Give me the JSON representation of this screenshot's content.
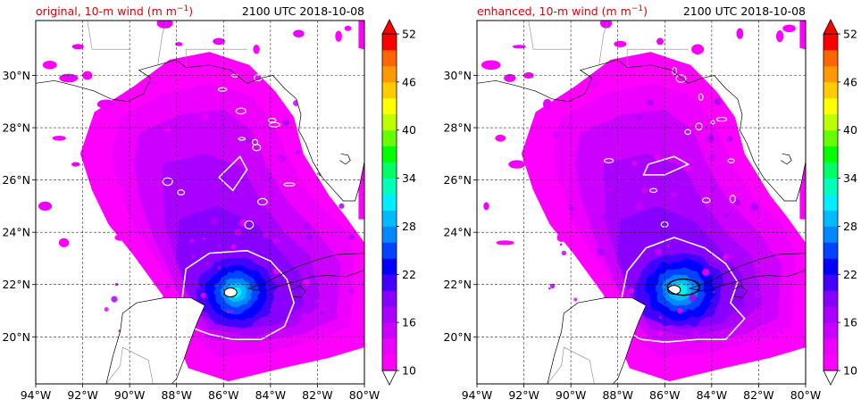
{
  "colors": {
    "title": "#e00000",
    "grid": "#000000",
    "land": "#ffffff",
    "contour": "#ffffff",
    "contour_inner": "#000000"
  },
  "chart_data": [
    {
      "type": "heatmap",
      "title_left": "original, 10-m wind (m m",
      "title_sup": "−1",
      "title_close": ")",
      "title_right": "2100 UTC 2018-10-08",
      "xlabel": "",
      "ylabel": "",
      "xlim": [
        -94,
        -80
      ],
      "ylim": [
        18.2,
        32.1
      ],
      "xticks": [
        -94,
        -92,
        -90,
        -88,
        -86,
        -84,
        -82,
        -80
      ],
      "xtick_labels": [
        "94°W",
        "92°W",
        "90°W",
        "88°W",
        "86°W",
        "84°W",
        "82°W",
        "80°W"
      ],
      "yticks": [
        20,
        22,
        24,
        26,
        28,
        30
      ],
      "ytick_labels": [
        "20°N",
        "22°N",
        "24°N",
        "26°N",
        "28°N",
        "30°N"
      ],
      "grid": "dashed",
      "storm_center": [
        -85.7,
        21.7
      ],
      "variant": "original"
    },
    {
      "type": "heatmap",
      "title_left": "enhanced, 10-m wind (m m",
      "title_sup": "−1",
      "title_close": ")",
      "title_right": "2100 UTC 2018-10-08",
      "xlabel": "",
      "ylabel": "",
      "xlim": [
        -94,
        -80
      ],
      "ylim": [
        18.2,
        32.1
      ],
      "xticks": [
        -94,
        -92,
        -90,
        -88,
        -86,
        -84,
        -82,
        -80
      ],
      "xtick_labels": [
        "94°W",
        "92°W",
        "90°W",
        "88°W",
        "86°W",
        "84°W",
        "82°W",
        "80°W"
      ],
      "yticks": [
        20,
        22,
        24,
        26,
        28,
        30
      ],
      "ytick_labels": [
        "20°N",
        "22°N",
        "24°N",
        "26°N",
        "28°N",
        "30°N"
      ],
      "grid": "dashed",
      "storm_center": [
        -85.6,
        21.8
      ],
      "variant": "enhanced"
    }
  ],
  "colorbar": {
    "range": [
      10,
      52
    ],
    "levels": [
      10,
      12,
      14,
      16,
      18,
      20,
      22,
      24,
      26,
      28,
      30,
      32,
      34,
      36,
      38,
      40,
      42,
      44,
      46,
      48,
      50,
      52
    ],
    "colors": [
      "#ff00ff",
      "#ee00ff",
      "#cc00ff",
      "#aa00ff",
      "#8800ff",
      "#4400ff",
      "#0000ff",
      "#0044ff",
      "#0088ff",
      "#00bbff",
      "#00eeff",
      "#00ffbb",
      "#00ff66",
      "#00ff00",
      "#66ff00",
      "#bbff00",
      "#ffff00",
      "#ffcc00",
      "#ff9900",
      "#ff6600",
      "#ff0000"
    ],
    "tick_labels": [
      "10",
      "16",
      "22",
      "28",
      "34",
      "40",
      "46",
      "52"
    ],
    "over_color": "#ff0000",
    "under_color": "#ffffff"
  }
}
